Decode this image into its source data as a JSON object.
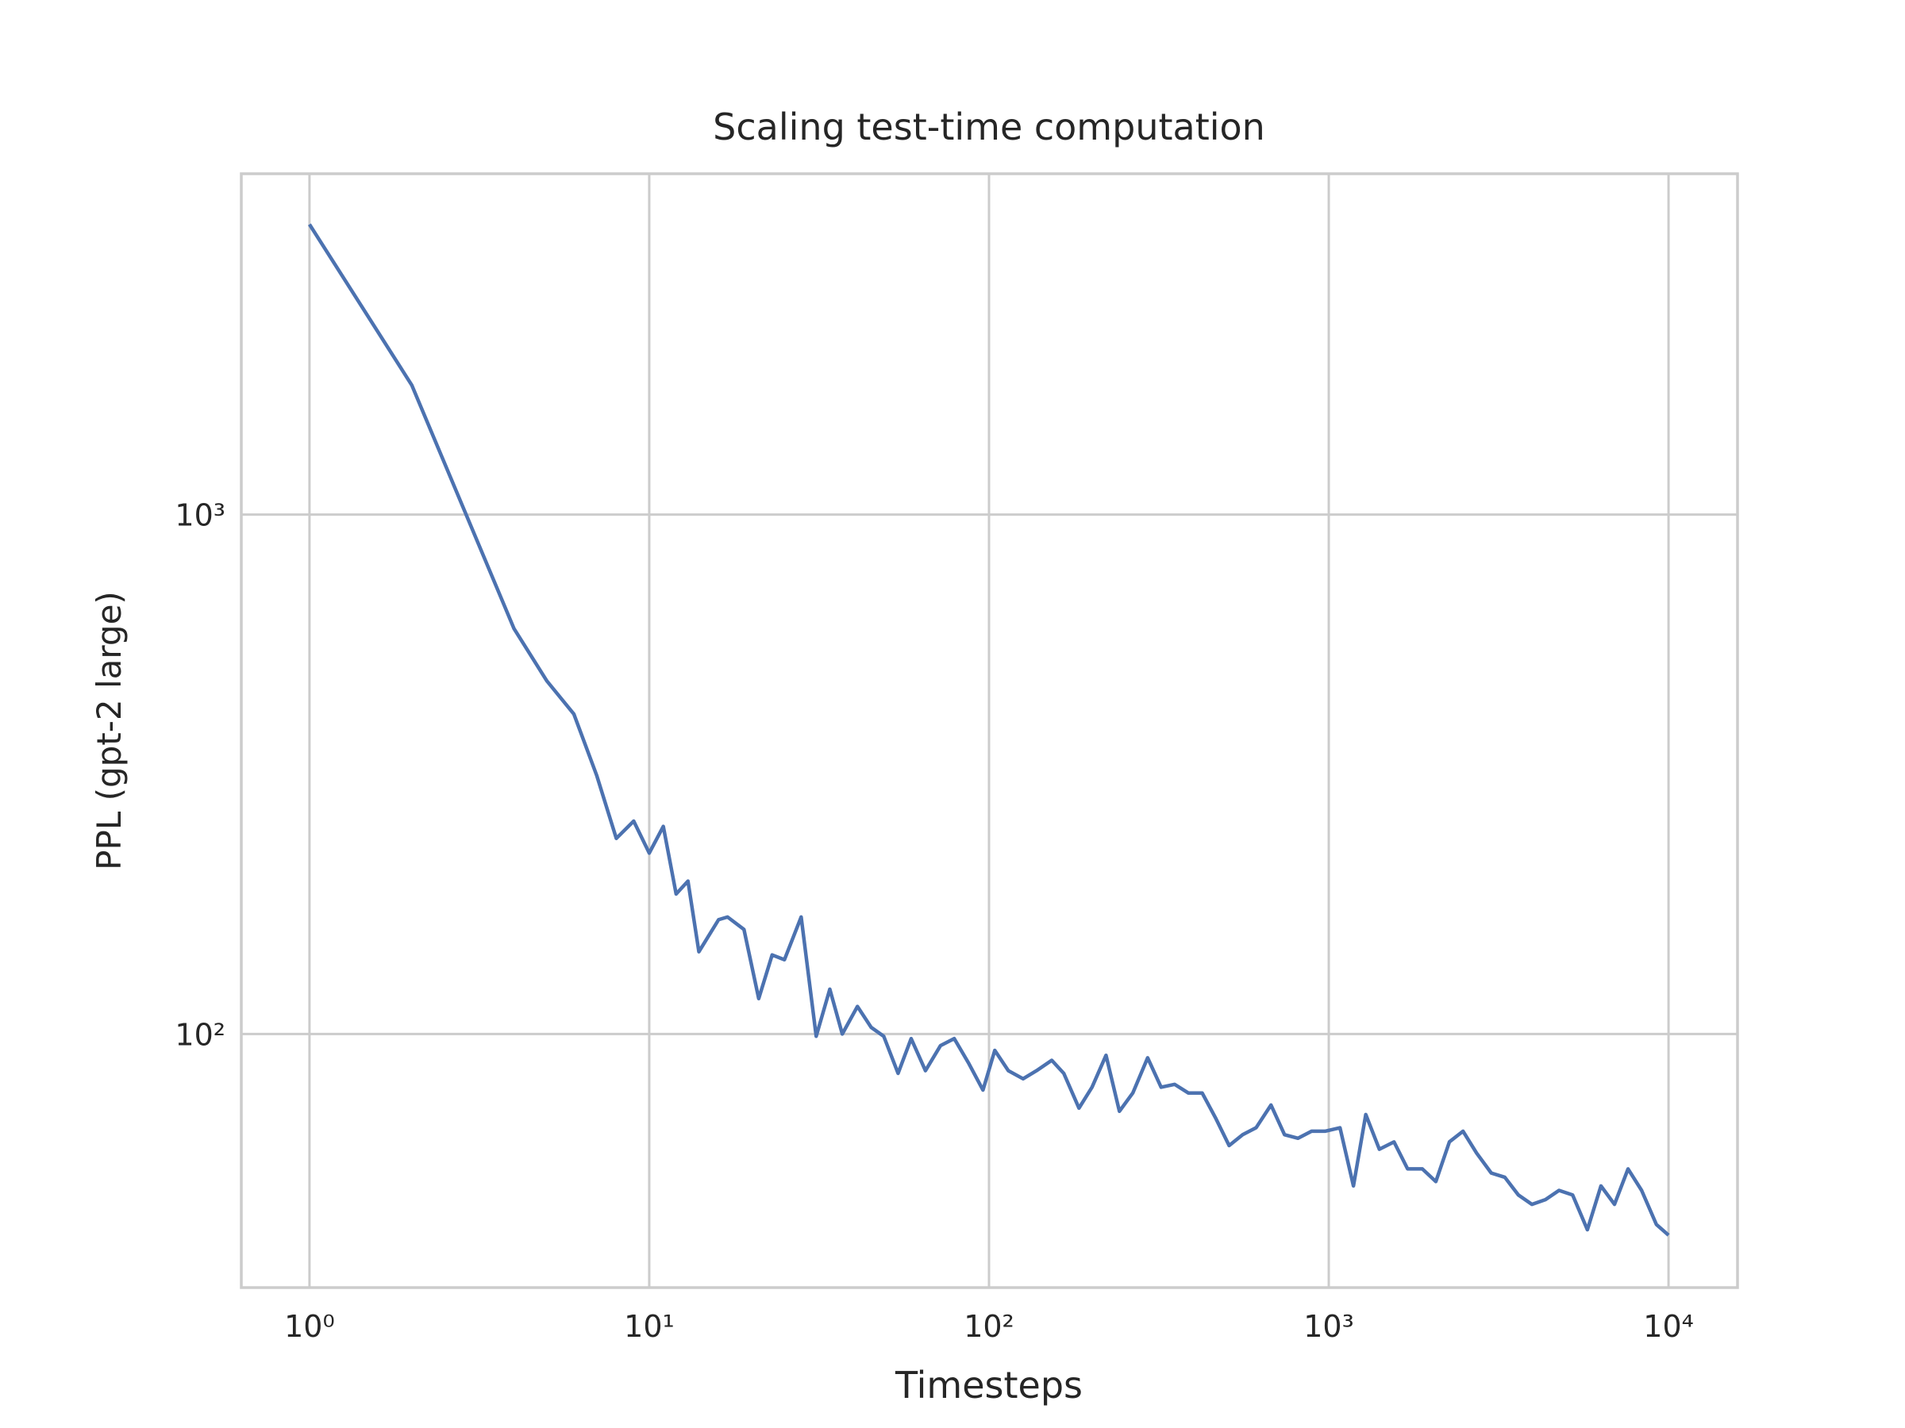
{
  "chart_data": {
    "type": "line",
    "title": "Scaling test-time computation",
    "x_label": "Timesteps",
    "y_label": "PPL (gpt-2 large)",
    "x_scale": "log",
    "y_scale": "log",
    "grid": true,
    "color": "#4c72b0",
    "x": [
      1,
      2,
      4,
      5,
      6,
      7,
      8,
      9,
      10,
      11,
      12,
      13,
      14,
      16,
      17,
      19,
      21,
      23,
      25,
      28,
      31,
      34,
      37,
      41,
      45,
      49,
      54,
      59,
      65,
      72,
      79,
      87,
      96,
      104,
      114,
      126,
      138,
      153,
      166,
      184,
      201,
      221,
      242,
      265,
      293,
      321,
      352,
      386,
      424,
      464,
      509,
      558,
      611,
      676,
      741,
      812,
      890,
      975,
      1079,
      1182,
      1285,
      1409,
      1556,
      1706,
      1885,
      2066,
      2265,
      2484,
      2723,
      3008,
      3297,
      3614,
      3962,
      4343,
      4761,
      5220,
      5770,
      6325,
      6933,
      7600,
      8332,
      9208,
      10000
    ],
    "values": [
      3620,
      1775,
      603,
      478,
      413,
      315,
      238,
      257,
      223,
      251,
      186,
      197,
      144,
      166,
      168,
      159,
      117,
      142,
      139,
      168,
      99,
      122,
      100,
      113,
      103,
      99,
      84,
      98,
      85,
      95,
      98,
      88,
      78,
      93,
      85,
      82,
      85,
      89,
      84,
      72,
      79,
      91,
      71,
      77,
      90,
      79,
      80,
      77,
      77,
      69,
      61,
      64,
      66,
      73,
      64,
      63,
      65,
      65,
      66,
      51,
      70,
      60,
      62,
      55,
      55,
      52,
      62,
      65,
      59,
      54,
      53,
      49,
      47,
      48,
      50,
      49,
      42,
      51,
      47,
      55,
      50,
      43,
      41
    ],
    "xlim": [
      0.63,
      15960
    ],
    "ylim": [
      32.5,
      4530
    ],
    "xticks": [
      {
        "value": 1,
        "label": "10⁰"
      },
      {
        "value": 10,
        "label": "10¹"
      },
      {
        "value": 100,
        "label": "10²"
      },
      {
        "value": 1000,
        "label": "10³"
      },
      {
        "value": 10000,
        "label": "10⁴"
      }
    ],
    "yticks": [
      {
        "value": 100,
        "label": "10²"
      },
      {
        "value": 1000,
        "label": "10³"
      }
    ]
  }
}
